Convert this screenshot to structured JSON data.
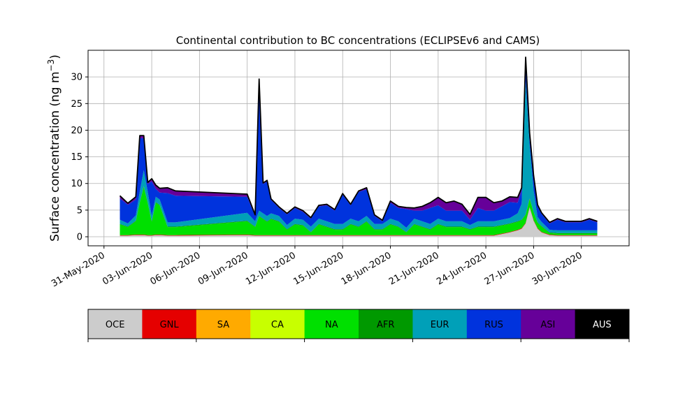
{
  "chart_data": {
    "type": "area",
    "stacked": true,
    "title": "Continental contribution to BC concentrations (ECLIPSEv6 and CAMS)",
    "ylabel_main": "Surface concentration (ng m",
    "ylabel_sup": "−3",
    "ylabel_close": ")",
    "xlabel": "",
    "grid": true,
    "x_ticks": [
      "31-May-2020",
      "03-Jun-2020",
      "06-Jun-2020",
      "09-Jun-2020",
      "12-Jun-2020",
      "15-Jun-2020",
      "18-Jun-2020",
      "21-Jun-2020",
      "24-Jun-2020",
      "27-Jun-2020",
      "30-Jun-2020"
    ],
    "x_tick_days": [
      0,
      3,
      6,
      9,
      12,
      15,
      18,
      21,
      24,
      27,
      30
    ],
    "x_range": [
      "30-May-2020",
      "03-Jul-2020"
    ],
    "y_ticks": [
      0,
      5,
      10,
      15,
      20,
      25,
      30
    ],
    "ylim": [
      -1.7,
      35
    ],
    "legend_position": "below-chart",
    "series_names": [
      "OCE",
      "GNL",
      "SA",
      "CA",
      "NA",
      "AFR",
      "EUR",
      "RUS",
      "ASI",
      "AUS"
    ],
    "series_colors": [
      "#cccccc",
      "#e50000",
      "#ffaa00",
      "#c8ff00",
      "#00e000",
      "#009900",
      "#00a0b8",
      "#0033dd",
      "#660099",
      "#000000"
    ],
    "legend_text_colors": [
      "#000000",
      "#000000",
      "#000000",
      "#000000",
      "#000000",
      "#000000",
      "#000000",
      "#000000",
      "#000000",
      "#ffffff"
    ],
    "dates": [
      "01-Jun-2020 00:00",
      "01-Jun-2020 12:00",
      "02-Jun-2020 00:00",
      "02-Jun-2020 06:00",
      "02-Jun-2020 12:00",
      "02-Jun-2020 18:00",
      "03-Jun-2020 00:00",
      "03-Jun-2020 06:00",
      "03-Jun-2020 12:00",
      "04-Jun-2020 00:00",
      "04-Jun-2020 12:00",
      "09-Jun-2020 00:00",
      "09-Jun-2020 12:00",
      "09-Jun-2020 18:00",
      "10-Jun-2020 00:00",
      "10-Jun-2020 06:00",
      "10-Jun-2020 12:00",
      "11-Jun-2020 00:00",
      "11-Jun-2020 12:00",
      "12-Jun-2020 00:00",
      "12-Jun-2020 12:00",
      "13-Jun-2020 00:00",
      "13-Jun-2020 12:00",
      "14-Jun-2020 00:00",
      "14-Jun-2020 12:00",
      "15-Jun-2020 00:00",
      "15-Jun-2020 12:00",
      "16-Jun-2020 00:00",
      "16-Jun-2020 12:00",
      "17-Jun-2020 00:00",
      "17-Jun-2020 12:00",
      "18-Jun-2020 00:00",
      "18-Jun-2020 12:00",
      "19-Jun-2020 00:00",
      "19-Jun-2020 12:00",
      "20-Jun-2020 00:00",
      "20-Jun-2020 12:00",
      "21-Jun-2020 00:00",
      "21-Jun-2020 12:00",
      "22-Jun-2020 00:00",
      "22-Jun-2020 12:00",
      "23-Jun-2020 00:00",
      "23-Jun-2020 12:00",
      "24-Jun-2020 00:00",
      "24-Jun-2020 12:00",
      "25-Jun-2020 00:00",
      "25-Jun-2020 12:00",
      "26-Jun-2020 00:00",
      "26-Jun-2020 06:00",
      "26-Jun-2020 12:00",
      "26-Jun-2020 18:00",
      "27-Jun-2020 00:00",
      "27-Jun-2020 06:00",
      "27-Jun-2020 12:00",
      "28-Jun-2020 00:00",
      "28-Jun-2020 12:00",
      "29-Jun-2020 00:00",
      "29-Jun-2020 12:00",
      "30-Jun-2020 00:00",
      "30-Jun-2020 12:00",
      "01-Jul-2020 00:00"
    ],
    "series": [
      {
        "name": "OCE",
        "values": [
          0.2,
          0.2,
          0.3,
          0.3,
          0.3,
          0.2,
          0.2,
          0.3,
          0.3,
          0.2,
          0.2,
          0.3,
          0.2,
          0.2,
          0.2,
          0.2,
          0.2,
          0.2,
          0.2,
          0.2,
          0.2,
          0.2,
          0.2,
          0.2,
          0.2,
          0.2,
          0.2,
          0.2,
          0.2,
          0.2,
          0.2,
          0.2,
          0.2,
          0.2,
          0.2,
          0.2,
          0.2,
          0.2,
          0.2,
          0.2,
          0.2,
          0.2,
          0.2,
          0.2,
          0.2,
          0.5,
          0.8,
          1.2,
          1.5,
          2.5,
          5.5,
          3.0,
          1.5,
          0.8,
          0.3,
          0.2,
          0.2,
          0.2,
          0.2,
          0.2,
          0.2
        ]
      },
      {
        "name": "GNL",
        "values": [
          0.1,
          0.1,
          0.1,
          0.1,
          0.1,
          0.1,
          0.1,
          0.1,
          0.1,
          0.1,
          0.1,
          0.1,
          0.1,
          0.1,
          0.1,
          0.1,
          0.1,
          0.1,
          0.1,
          0.1,
          0.1,
          0.1,
          0.1,
          0.1,
          0.1,
          0.1,
          0.1,
          0.1,
          0.1,
          0.1,
          0.1,
          0.1,
          0.1,
          0.1,
          0.1,
          0.1,
          0.1,
          0.1,
          0.1,
          0.1,
          0.1,
          0.1,
          0.1,
          0.1,
          0.1,
          0.1,
          0.1,
          0.1,
          0.1,
          0.1,
          0.1,
          0.1,
          0.1,
          0.1,
          0.1,
          0.1,
          0.1,
          0.1,
          0.1,
          0.1,
          0.1
        ]
      },
      {
        "name": "SA",
        "values": [
          0,
          0,
          0,
          0,
          0,
          0,
          0,
          0,
          0,
          0,
          0,
          0,
          0,
          0,
          0,
          0,
          0,
          0,
          0,
          0,
          0,
          0,
          0,
          0,
          0,
          0,
          0,
          0,
          0,
          0,
          0,
          0,
          0,
          0,
          0,
          0,
          0,
          0,
          0,
          0,
          0,
          0,
          0,
          0,
          0,
          0,
          0,
          0,
          0,
          0,
          0,
          0,
          0,
          0,
          0,
          0,
          0,
          0,
          0,
          0,
          0
        ]
      },
      {
        "name": "CA",
        "values": [
          0,
          0,
          0,
          0,
          0,
          0,
          0,
          0,
          0,
          0,
          0,
          0,
          0,
          0,
          0,
          0,
          0,
          0,
          0,
          0,
          0,
          0,
          0,
          0,
          0,
          0,
          0,
          0,
          0,
          0,
          0,
          0,
          0,
          0,
          0,
          0,
          0,
          0,
          0,
          0,
          0,
          0,
          0,
          0,
          0,
          0,
          0,
          0,
          0,
          0,
          0,
          0,
          0,
          0,
          0,
          0,
          0,
          0,
          0,
          0,
          0
        ]
      },
      {
        "name": "NA",
        "values": [
          2.0,
          1.5,
          2.5,
          6.0,
          9.0,
          6.0,
          2.5,
          6.0,
          5.5,
          1.5,
          1.5,
          2.5,
          1.5,
          3.5,
          3.0,
          2.5,
          3.0,
          2.5,
          1.0,
          2.0,
          1.8,
          0.5,
          2.0,
          1.5,
          1.0,
          1.0,
          2.0,
          1.5,
          2.5,
          1.0,
          1.0,
          2.0,
          1.5,
          0.5,
          2.0,
          1.5,
          1.0,
          2.0,
          1.5,
          1.5,
          1.5,
          1.0,
          1.5,
          1.5,
          1.5,
          1.5,
          1.5,
          1.5,
          1.5,
          1.5,
          1.5,
          1.5,
          1.0,
          1.0,
          0.3,
          0.3,
          0.3,
          0.3,
          0.3,
          0.3,
          0.3
        ]
      },
      {
        "name": "AFR",
        "values": [
          0.1,
          0.1,
          0.1,
          0.1,
          0.1,
          0.1,
          0.1,
          0.1,
          0.1,
          0.1,
          0.1,
          0.1,
          0.1,
          0.1,
          0.1,
          0.1,
          0.1,
          0.1,
          0.1,
          0.1,
          0.1,
          0.1,
          0.1,
          0.1,
          0.1,
          0.1,
          0.1,
          0.1,
          0.1,
          0.1,
          0.1,
          0.1,
          0.1,
          0.1,
          0.1,
          0.1,
          0.1,
          0.1,
          0.1,
          0.1,
          0.1,
          0.1,
          0.1,
          0.1,
          0.1,
          0.1,
          0.1,
          0.1,
          0.1,
          0.1,
          0.1,
          0.1,
          0.1,
          0.1,
          0.1,
          0.1,
          0.1,
          0.1,
          0.1,
          0.1,
          0.1
        ]
      },
      {
        "name": "EUR",
        "values": [
          0.8,
          0.6,
          1.0,
          2.0,
          3.0,
          2.0,
          1.0,
          1.0,
          1.0,
          0.8,
          0.8,
          1.5,
          1.0,
          1.0,
          1.0,
          1.0,
          1.0,
          1.0,
          0.8,
          1.0,
          1.0,
          1.0,
          1.0,
          1.0,
          1.0,
          1.0,
          1.0,
          1.0,
          1.0,
          1.0,
          1.0,
          1.0,
          1.0,
          0.8,
          1.0,
          1.0,
          1.0,
          1.0,
          1.0,
          1.0,
          1.0,
          0.8,
          1.0,
          1.0,
          1.0,
          1.0,
          1.0,
          1.5,
          3.0,
          25.0,
          10.0,
          4.0,
          1.0,
          0.8,
          0.5,
          0.5,
          0.5,
          0.5,
          0.5,
          0.5,
          0.5
        ]
      },
      {
        "name": "RUS",
        "values": [
          4.0,
          3.5,
          3.0,
          10.0,
          6.0,
          1.5,
          6.5,
          1.5,
          1.3,
          5.5,
          5.0,
          3.0,
          1.0,
          24.5,
          5.5,
          6.5,
          2.5,
          1.5,
          2.0,
          2.0,
          1.5,
          1.5,
          2.3,
          3.0,
          2.5,
          5.5,
          2.5,
          5.5,
          5.0,
          1.5,
          0.5,
          3.0,
          2.5,
          3.5,
          1.5,
          2.0,
          3.0,
          2.5,
          2.0,
          2.0,
          2.0,
          1.0,
          2.5,
          2.0,
          2.0,
          2.5,
          3.0,
          2.0,
          2.5,
          4.0,
          2.0,
          2.5,
          2.0,
          1.5,
          1.2,
          2.0,
          1.5,
          1.5,
          1.5,
          2.0,
          1.5
        ]
      },
      {
        "name": "ASI",
        "values": [
          0.5,
          0.3,
          0.5,
          0.5,
          0.5,
          0.3,
          0.5,
          0.7,
          0.8,
          1.0,
          0.9,
          0.5,
          0.2,
          0.2,
          0.2,
          0.2,
          0.2,
          0.2,
          0.2,
          0.2,
          0.2,
          0.2,
          0.2,
          0.2,
          0.2,
          0.2,
          0.2,
          0.2,
          0.3,
          0.2,
          0.2,
          0.3,
          0.3,
          0.3,
          0.5,
          0.8,
          1.0,
          1.5,
          1.5,
          1.8,
          1.2,
          1.0,
          2.0,
          2.5,
          1.5,
          1.0,
          1.0,
          1.0,
          0.5,
          0.5,
          0.3,
          0.3,
          0.3,
          0.2,
          0.2,
          0.2,
          0.2,
          0.2,
          0.2,
          0.2,
          0.2
        ]
      },
      {
        "name": "AUS",
        "values": [
          0,
          0,
          0,
          0,
          0,
          0,
          0,
          0,
          0,
          0,
          0,
          0,
          0,
          0,
          0,
          0,
          0,
          0,
          0,
          0,
          0,
          0,
          0,
          0,
          0,
          0,
          0,
          0,
          0,
          0,
          0,
          0,
          0,
          0,
          0,
          0,
          0,
          0,
          0,
          0,
          0,
          0,
          0,
          0,
          0,
          0,
          0,
          0,
          0,
          0,
          0,
          0,
          0,
          0,
          0,
          0,
          0,
          0,
          0,
          0,
          0
        ]
      }
    ]
  }
}
